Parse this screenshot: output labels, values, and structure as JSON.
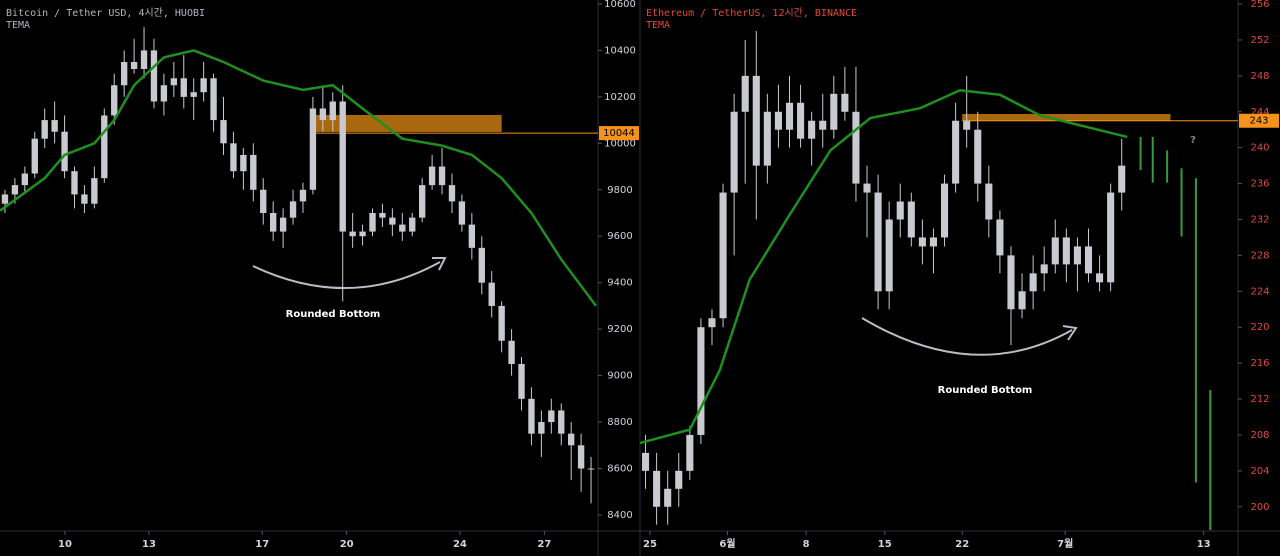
{
  "chart_data": [
    {
      "type": "candlestick",
      "title": "Bitcoin / Tether USD, 4시간, HUOBI",
      "title_color": "#b2b5be",
      "axis_color": "#d1d4dc",
      "candle_color": "#c8cad0",
      "open": [
        9740,
        9780,
        9820,
        9870,
        10020,
        10100,
        10050,
        9880,
        9780,
        9740,
        9850,
        10120,
        10250,
        10350,
        10320,
        10400,
        10180,
        10250,
        10280,
        10200,
        10220,
        10280,
        10100,
        10000,
        9880,
        9950,
        9800,
        9700,
        9620,
        9680,
        9750,
        9800,
        10150,
        10100,
        10180,
        9620,
        9600,
        9620,
        9700,
        9680,
        9650,
        9620,
        9680,
        9820,
        9900,
        9820,
        9750,
        9650,
        9550,
        9400,
        9300,
        9150,
        9050,
        8900,
        8750,
        8800,
        8850,
        8750,
        8700,
        8600
      ],
      "high": [
        9800,
        9850,
        9900,
        10050,
        10150,
        10180,
        10120,
        9900,
        9820,
        9900,
        10150,
        10300,
        10400,
        10450,
        10500,
        10450,
        10300,
        10350,
        10380,
        10280,
        10350,
        10300,
        10200,
        10050,
        9980,
        10000,
        9850,
        9750,
        9720,
        9800,
        9830,
        10200,
        10250,
        10220,
        10250,
        9700,
        9650,
        9720,
        9740,
        9720,
        9700,
        9700,
        9850,
        9950,
        9980,
        9870,
        9780,
        9700,
        9600,
        9450,
        9320,
        9200,
        9080,
        8950,
        8850,
        8900,
        8880,
        8800,
        8750,
        8650
      ],
      "low": [
        9700,
        9740,
        9780,
        9850,
        9980,
        10000,
        9850,
        9720,
        9700,
        9720,
        9830,
        10080,
        10200,
        10300,
        10280,
        10150,
        10120,
        10200,
        10150,
        10100,
        10180,
        10050,
        9950,
        9850,
        9800,
        9750,
        9650,
        9580,
        9550,
        9650,
        9700,
        9780,
        10050,
        10050,
        9320,
        9550,
        9560,
        9600,
        9640,
        9600,
        9580,
        9600,
        9660,
        9800,
        9780,
        9700,
        9620,
        9500,
        9350,
        9250,
        9100,
        9000,
        8850,
        8700,
        8650,
        8750,
        8700,
        8550,
        8500,
        8450
      ],
      "close": [
        9780,
        9820,
        9870,
        10020,
        10100,
        10050,
        9880,
        9780,
        9740,
        9850,
        10120,
        10250,
        10350,
        10320,
        10400,
        10180,
        10250,
        10280,
        10200,
        10220,
        10280,
        10100,
        10000,
        9880,
        9950,
        9800,
        9700,
        9620,
        9680,
        9750,
        9800,
        10150,
        10100,
        10180,
        9620,
        9600,
        9620,
        9700,
        9680,
        9650,
        9620,
        9680,
        9820,
        9900,
        9820,
        9750,
        9650,
        9550,
        9400,
        9300,
        9150,
        9050,
        8900,
        8750,
        8800,
        8850,
        8750,
        8700,
        8600,
        8600
      ],
      "xlim": [
        -0.5,
        59.7
      ],
      "xticks": [
        {
          "value": 6.04,
          "label": "10"
        },
        {
          "value": 14.5,
          "label": "13"
        },
        {
          "value": 25.9,
          "label": "17"
        },
        {
          "value": 34.4,
          "label": "20"
        },
        {
          "value": 45.8,
          "label": "24"
        },
        {
          "value": 54.3,
          "label": "27"
        }
      ],
      "ylim": [
        8331,
        10617
      ],
      "yticks": [
        8400,
        8600,
        8800,
        9000,
        9200,
        9400,
        9600,
        9800,
        10000,
        10200,
        10400,
        10600
      ],
      "tema": {
        "name": "TEMA",
        "color": "#1f8f1f",
        "x": [
          -0.5,
          4,
          6,
          9,
          11,
          13,
          16,
          19,
          22,
          26,
          30,
          33,
          36,
          40,
          44,
          47,
          50,
          53,
          56,
          59.5
        ],
        "values": [
          9710,
          9850,
          9950,
          10000,
          10100,
          10250,
          10370,
          10400,
          10350,
          10270,
          10230,
          10250,
          10150,
          10020,
          9990,
          9950,
          9850,
          9700,
          9500,
          9300
        ]
      },
      "zone": {
        "color": "#c77a12",
        "x": [
          31.2,
          50.0
        ],
        "y": [
          10049,
          10122
        ]
      },
      "price_label": 10044,
      "price_label_color": "#f7931a",
      "annotation": "Rounded Bottom"
    },
    {
      "type": "candlestick",
      "title": "Ethereum / TetherUS, 12시간, BINANCE",
      "title_color": "#e0483c",
      "axis_color": "#e0483c",
      "candle_color": "#c8cad0",
      "open": [
        206,
        204,
        200,
        202,
        204,
        208,
        220,
        221,
        235,
        244,
        248,
        238,
        244,
        242,
        245,
        241,
        243,
        242,
        246,
        244,
        236,
        235,
        224,
        232,
        234,
        230,
        229,
        230,
        236,
        243,
        242,
        236,
        232,
        228,
        222,
        224,
        226,
        227,
        230,
        227,
        229,
        226,
        225,
        235
      ],
      "high": [
        208,
        206,
        204,
        206,
        209,
        221,
        222,
        236,
        246,
        252,
        253,
        246,
        247,
        248,
        247,
        244,
        246,
        248,
        249,
        249,
        238,
        237,
        234,
        236,
        235,
        232,
        231,
        237,
        245,
        248,
        244,
        238,
        233,
        229,
        226,
        228,
        229,
        232,
        231,
        230,
        231,
        228,
        236,
        241
      ],
      "low": [
        202,
        198,
        198,
        200,
        203,
        207,
        218,
        220,
        228,
        236,
        232,
        236,
        240,
        240,
        240,
        238,
        240,
        241,
        243,
        234,
        230,
        222,
        222,
        230,
        229,
        227,
        226,
        229,
        235,
        240,
        234,
        230,
        226,
        218,
        221,
        222,
        224,
        226,
        225,
        224,
        225,
        224,
        224,
        233
      ],
      "close": [
        204,
        200,
        202,
        204,
        208,
        220,
        221,
        235,
        244,
        248,
        238,
        244,
        242,
        245,
        241,
        243,
        242,
        246,
        244,
        236,
        235,
        224,
        232,
        234,
        230,
        229,
        230,
        236,
        243,
        242,
        236,
        232,
        228,
        222,
        224,
        226,
        227,
        230,
        227,
        229,
        226,
        225,
        235,
        238
      ],
      "xlim": [
        -0.5,
        53.5
      ],
      "xticks": [
        {
          "value": 0.4,
          "label": "25"
        },
        {
          "value": 7.4,
          "label": "6월"
        },
        {
          "value": 14.5,
          "label": "8"
        },
        {
          "value": 21.6,
          "label": "15"
        },
        {
          "value": 28.6,
          "label": "22"
        },
        {
          "value": 37.9,
          "label": "7월"
        },
        {
          "value": 50.4,
          "label": "13"
        }
      ],
      "ylim": [
        197.3,
        256.45
      ],
      "yticks": [
        200,
        204,
        208,
        212,
        216,
        220,
        224,
        228,
        232,
        236,
        240,
        244,
        248,
        252,
        256
      ],
      "tema": {
        "name": "TEMA",
        "color": "#1f8f1f",
        "x": [
          -0.5,
          4,
          6.7,
          9.4,
          13,
          16.7,
          20.3,
          24.8,
          28.4,
          32,
          35.6,
          39.2,
          43.5
        ],
        "values": [
          207.1,
          208.6,
          215.2,
          225.3,
          232.5,
          239.7,
          243.3,
          244.4,
          246.4,
          245.9,
          243.6,
          242.5,
          241.2
        ]
      },
      "projection": {
        "color": "#3c9a3c",
        "x": [
          44.7,
          45.8,
          47.1,
          48.4,
          49.7,
          51.0
        ],
        "high": [
          241.2,
          241.2,
          239.7,
          237.7,
          236.6,
          213.0
        ],
        "low": [
          237.5,
          236.1,
          236.1,
          230.1,
          202.7,
          197.4
        ]
      },
      "zone": {
        "color": "#c77a12",
        "x": [
          28.6,
          47.4
        ],
        "y": [
          243.0,
          243.75
        ]
      },
      "price_label": 243,
      "price_label_color": "#f7931a",
      "annotation": "Rounded Bottom",
      "question": "?"
    }
  ]
}
